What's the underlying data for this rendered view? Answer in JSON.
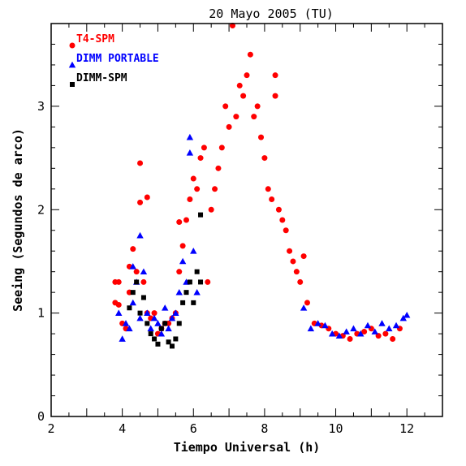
{
  "chart_data": {
    "type": "scatter",
    "title": "20 Mayo 2005 (TU)",
    "xlabel": "Tiempo Universal (h)",
    "ylabel": "Seeing (Segundos de arco)",
    "xlim": [
      2,
      13
    ],
    "ylim": [
      0,
      3.8
    ],
    "xticks": [
      "2",
      "4",
      "6",
      "8",
      "10",
      "12"
    ],
    "yticks": [
      "0",
      "1",
      "2",
      "3"
    ],
    "grid": false,
    "legend_position": "top-left",
    "series": [
      {
        "name": "T4-SPM",
        "color": "#ff0000",
        "marker": "circle",
        "points": [
          [
            3.8,
            1.3
          ],
          [
            3.8,
            1.1
          ],
          [
            3.9,
            1.08
          ],
          [
            3.9,
            1.3
          ],
          [
            4.0,
            0.9
          ],
          [
            4.1,
            0.85
          ],
          [
            4.2,
            1.2
          ],
          [
            4.2,
            1.45
          ],
          [
            4.3,
            1.62
          ],
          [
            4.4,
            1.4
          ],
          [
            4.5,
            2.45
          ],
          [
            4.5,
            2.07
          ],
          [
            4.6,
            1.3
          ],
          [
            4.7,
            2.12
          ],
          [
            4.7,
            1.0
          ],
          [
            4.8,
            0.95
          ],
          [
            4.9,
            1.0
          ],
          [
            5.0,
            0.8
          ],
          [
            5.1,
            0.85
          ],
          [
            5.2,
            0.9
          ],
          [
            5.3,
            0.9
          ],
          [
            5.4,
            0.95
          ],
          [
            5.5,
            1.0
          ],
          [
            5.6,
            1.4
          ],
          [
            5.6,
            1.88
          ],
          [
            5.7,
            1.65
          ],
          [
            5.8,
            1.9
          ],
          [
            5.9,
            2.1
          ],
          [
            6.0,
            2.3
          ],
          [
            6.1,
            2.2
          ],
          [
            6.2,
            2.5
          ],
          [
            6.3,
            2.6
          ],
          [
            6.4,
            1.3
          ],
          [
            6.5,
            2.0
          ],
          [
            6.6,
            2.2
          ],
          [
            6.7,
            2.4
          ],
          [
            6.8,
            2.6
          ],
          [
            6.9,
            3.0
          ],
          [
            7.0,
            2.8
          ],
          [
            7.1,
            3.78
          ],
          [
            7.2,
            2.9
          ],
          [
            7.3,
            3.2
          ],
          [
            7.4,
            3.1
          ],
          [
            7.5,
            3.3
          ],
          [
            7.6,
            3.5
          ],
          [
            7.7,
            2.9
          ],
          [
            7.8,
            3.0
          ],
          [
            7.9,
            2.7
          ],
          [
            8.0,
            2.5
          ],
          [
            8.1,
            2.2
          ],
          [
            8.2,
            2.1
          ],
          [
            8.3,
            3.3
          ],
          [
            8.3,
            3.1
          ],
          [
            8.4,
            2.0
          ],
          [
            8.5,
            1.9
          ],
          [
            8.6,
            1.8
          ],
          [
            8.7,
            1.6
          ],
          [
            8.8,
            1.5
          ],
          [
            8.9,
            1.4
          ],
          [
            9.0,
            1.3
          ],
          [
            9.1,
            1.55
          ],
          [
            9.2,
            1.1
          ],
          [
            9.4,
            0.9
          ],
          [
            9.6,
            0.88
          ],
          [
            9.8,
            0.85
          ],
          [
            10.0,
            0.8
          ],
          [
            10.2,
            0.78
          ],
          [
            10.4,
            0.75
          ],
          [
            10.6,
            0.8
          ],
          [
            10.8,
            0.82
          ],
          [
            11.0,
            0.85
          ],
          [
            11.2,
            0.78
          ],
          [
            11.4,
            0.8
          ],
          [
            11.6,
            0.75
          ],
          [
            11.8,
            0.85
          ]
        ]
      },
      {
        "name": "DIMM PORTABLE",
        "color": "#0000ff",
        "marker": "triangle",
        "points": [
          [
            3.9,
            1.0
          ],
          [
            4.0,
            0.75
          ],
          [
            4.1,
            0.9
          ],
          [
            4.2,
            0.85
          ],
          [
            4.3,
            1.1
          ],
          [
            4.3,
            1.45
          ],
          [
            4.4,
            1.3
          ],
          [
            4.5,
            1.75
          ],
          [
            4.5,
            0.95
          ],
          [
            4.6,
            1.4
          ],
          [
            4.7,
            1.0
          ],
          [
            4.8,
            0.85
          ],
          [
            4.9,
            0.95
          ],
          [
            5.0,
            0.9
          ],
          [
            5.1,
            0.8
          ],
          [
            5.2,
            1.05
          ],
          [
            5.3,
            0.85
          ],
          [
            5.4,
            0.95
          ],
          [
            5.5,
            1.0
          ],
          [
            5.6,
            1.2
          ],
          [
            5.7,
            1.5
          ],
          [
            5.8,
            1.3
          ],
          [
            5.9,
            2.7
          ],
          [
            5.9,
            2.55
          ],
          [
            6.0,
            1.6
          ],
          [
            6.1,
            1.2
          ],
          [
            9.1,
            1.05
          ],
          [
            9.3,
            0.85
          ],
          [
            9.5,
            0.9
          ],
          [
            9.7,
            0.88
          ],
          [
            9.9,
            0.8
          ],
          [
            10.1,
            0.78
          ],
          [
            10.3,
            0.82
          ],
          [
            10.5,
            0.85
          ],
          [
            10.7,
            0.8
          ],
          [
            10.9,
            0.88
          ],
          [
            11.1,
            0.82
          ],
          [
            11.3,
            0.9
          ],
          [
            11.5,
            0.85
          ],
          [
            11.7,
            0.88
          ],
          [
            11.9,
            0.95
          ],
          [
            12.0,
            0.98
          ]
        ]
      },
      {
        "name": "DIMM-SPM",
        "color": "#000000",
        "marker": "square",
        "points": [
          [
            4.2,
            1.05
          ],
          [
            4.3,
            1.2
          ],
          [
            4.4,
            1.3
          ],
          [
            4.5,
            1.0
          ],
          [
            4.6,
            1.15
          ],
          [
            4.7,
            0.9
          ],
          [
            4.8,
            0.8
          ],
          [
            4.9,
            0.75
          ],
          [
            5.0,
            0.7
          ],
          [
            5.1,
            0.85
          ],
          [
            5.2,
            0.9
          ],
          [
            5.3,
            0.72
          ],
          [
            5.4,
            0.68
          ],
          [
            5.5,
            0.75
          ],
          [
            5.6,
            0.9
          ],
          [
            5.7,
            1.1
          ],
          [
            5.8,
            1.2
          ],
          [
            5.9,
            1.3
          ],
          [
            6.0,
            1.1
          ],
          [
            6.1,
            1.4
          ],
          [
            6.2,
            1.3
          ],
          [
            6.2,
            1.95
          ]
        ]
      }
    ]
  }
}
